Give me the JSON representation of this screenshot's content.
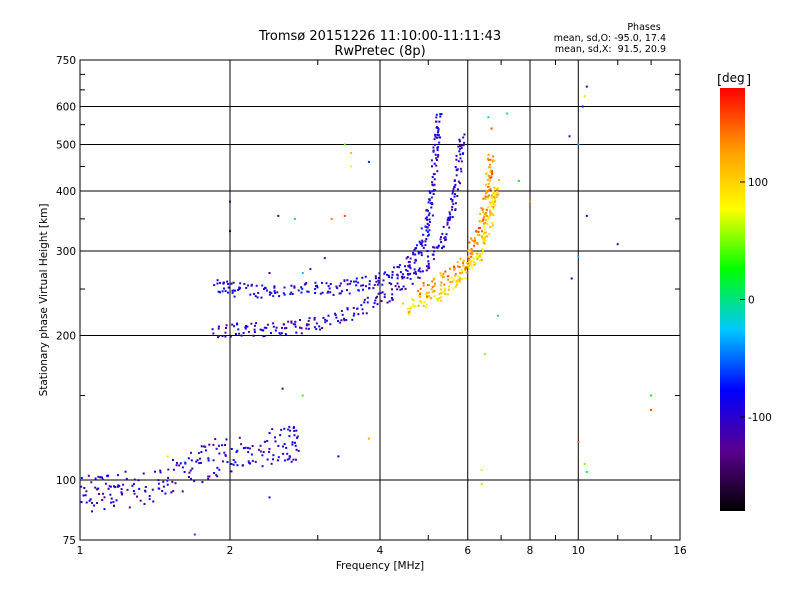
{
  "chart_data": {
    "type": "scatter",
    "title": "Tromsø 20151226 11:10:00-11:11:43",
    "subtitle": "RwPretec (8p)",
    "xlabel": "Frequency [MHz]",
    "ylabel": "Stationary phase Virtual Height [km]",
    "x_scale": "log",
    "y_scale": "log",
    "xlim": [
      1,
      16
    ],
    "ylim": [
      75,
      750
    ],
    "grid": true,
    "x_ticks": [
      1,
      2,
      4,
      6,
      8,
      10,
      16
    ],
    "x_tick_labels": [
      "1",
      "2",
      "4",
      "6",
      "8",
      "10",
      "16"
    ],
    "y_ticks": [
      75,
      100,
      200,
      300,
      400,
      500,
      600,
      750
    ],
    "y_tick_labels": [
      "75",
      "100",
      "200",
      "300",
      "400",
      "500",
      "600",
      "750"
    ],
    "stats": {
      "heading": "Phases",
      "line_o": "mean, sd,O: -95.0, 17.4",
      "line_x": "mean, sd,X:  91.5, 20.9"
    },
    "colorbar": {
      "label": "deg",
      "min": -180,
      "max": 180,
      "tick_values": [
        100,
        0,
        -100
      ],
      "tick_labels": [
        "100",
        "0",
        "-100"
      ],
      "colors": [
        "#000000",
        "#5a0090",
        "#0000ff",
        "#00c8ff",
        "#00ff00",
        "#ffff00",
        "#ff9900",
        "#ff0000"
      ]
    },
    "series": [
      {
        "traces": [
          {
            "kind": "O-trace",
            "phase": -95,
            "points": [
              [
                1.87,
                252
              ],
              [
                2.1,
                249
              ],
              [
                2.5,
                248
              ],
              [
                3.0,
                249
              ],
              [
                3.5,
                253
              ],
              [
                4.0,
                261
              ],
              [
                4.5,
                275
              ],
              [
                4.8,
                300
              ],
              [
                5.0,
                340
              ],
              [
                5.1,
                400
              ],
              [
                5.2,
                500
              ],
              [
                5.25,
                580
              ]
            ]
          },
          {
            "kind": "O-trace",
            "phase": -100,
            "points": [
              [
                1.85,
                205
              ],
              [
                2.2,
                205
              ],
              [
                2.6,
                207
              ],
              [
                3.0,
                212
              ],
              [
                3.6,
                225
              ],
              [
                4.2,
                245
              ],
              [
                4.8,
                272
              ],
              [
                5.3,
                310
              ],
              [
                5.6,
                370
              ],
              [
                5.75,
                440
              ],
              [
                5.85,
                520
              ]
            ]
          },
          {
            "kind": "X-trace",
            "phase": 95,
            "points": [
              [
                4.5,
                228
              ],
              [
                5.0,
                237
              ],
              [
                5.6,
                255
              ],
              [
                6.0,
                275
              ],
              [
                6.4,
                300
              ],
              [
                6.6,
                340
              ],
              [
                6.75,
                380
              ],
              [
                6.85,
                410
              ]
            ]
          },
          {
            "kind": "X-trace",
            "phase": 130,
            "points": [
              [
                4.8,
                245
              ],
              [
                5.4,
                262
              ],
              [
                5.9,
                285
              ],
              [
                6.3,
                320
              ],
              [
                6.5,
                370
              ],
              [
                6.6,
                420
              ],
              [
                6.7,
                470
              ]
            ]
          },
          {
            "kind": "E-region",
            "phase": -100,
            "points": [
              [
                1.0,
                96
              ],
              [
                1.1,
                93
              ],
              [
                1.2,
                95
              ],
              [
                1.4,
                97
              ],
              [
                1.6,
                103
              ],
              [
                1.8,
                110
              ],
              [
                2.0,
                113
              ],
              [
                2.3,
                116
              ],
              [
                2.6,
                120
              ],
              [
                2.75,
                118
              ]
            ]
          }
        ]
      }
    ],
    "scattered_points": [
      [
        2.0,
        380
      ],
      [
        2.0,
        330
      ],
      [
        2.5,
        355
      ],
      [
        2.7,
        350
      ],
      [
        3.2,
        350
      ],
      [
        3.4,
        355
      ],
      [
        3.8,
        460
      ],
      [
        3.5,
        480
      ],
      [
        3.4,
        500
      ],
      [
        3.5,
        450
      ],
      [
        2.4,
        270
      ],
      [
        2.8,
        270
      ],
      [
        3.1,
        290
      ],
      [
        2.9,
        275
      ],
      [
        6.6,
        570
      ],
      [
        6.7,
        540
      ],
      [
        7.2,
        580
      ],
      [
        7.6,
        420
      ],
      [
        8.0,
        380
      ],
      [
        9.6,
        520
      ],
      [
        10.0,
        500
      ],
      [
        10.2,
        600
      ],
      [
        10.4,
        660
      ],
      [
        10.3,
        630
      ],
      [
        10.4,
        355
      ],
      [
        9.7,
        263
      ],
      [
        10.0,
        292
      ],
      [
        12.0,
        310
      ],
      [
        14.0,
        150
      ],
      [
        14.0,
        140
      ],
      [
        10.0,
        120
      ],
      [
        10.3,
        108
      ],
      [
        10.4,
        104
      ],
      [
        6.5,
        183
      ],
      [
        6.4,
        105
      ],
      [
        6.4,
        98
      ],
      [
        3.8,
        122
      ],
      [
        3.3,
        112
      ],
      [
        2.8,
        150
      ],
      [
        2.55,
        155
      ],
      [
        2.4,
        92
      ],
      [
        1.7,
        77
      ],
      [
        1.5,
        112
      ],
      [
        6.9,
        220
      ]
    ]
  }
}
